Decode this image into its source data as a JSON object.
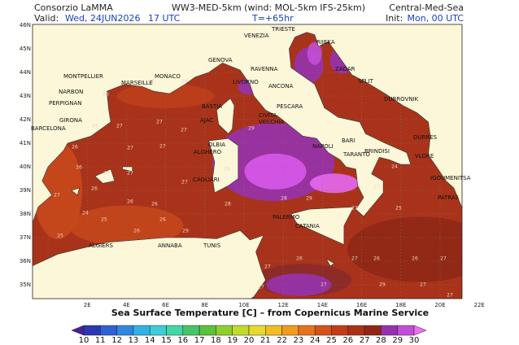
{
  "header": {
    "left_top": "Consorzio LaMMA",
    "center_top": "WW3-MED-5km (wind: MOL-5km IFS-25km)",
    "right_top": "Central-Med-Sea",
    "valid_label": "Valid:",
    "valid_date": "Wed, 24JUN2026",
    "valid_hour": "17 UTC",
    "lead": "T=+65hr",
    "init_label": "Init:",
    "init_time": "Mon, 00 UTC"
  },
  "map": {
    "lat_ticks": [
      "46N",
      "45N",
      "44N",
      "43N",
      "42N",
      "41N",
      "40N",
      "39N",
      "38N",
      "37N",
      "36N",
      "35N"
    ],
    "lon_ticks": [
      "2E",
      "4E",
      "6E",
      "8E",
      "10E",
      "12E",
      "14E",
      "16E",
      "18E",
      "20E",
      "22E"
    ],
    "cities": [
      "VENEZIA",
      "TRIESTE",
      "RIJEKA",
      "GENOVA",
      "MONACO",
      "MONTPELLIER",
      "MARSEILLE",
      "RAVENNA",
      "ZADAR",
      "SPLIT",
      "NARBON",
      "PERPIGNAN",
      "LIVORNO",
      "ANCONA",
      "DUBROVNIK",
      "BASTIA",
      "PESCARA",
      "CIVITA-",
      "VECCHIA",
      "GIRONA",
      "BARCELONA",
      "AJAC",
      "DURRES",
      "OLBIA",
      "ALGHERO",
      "NAPOLI",
      "BARI",
      "TARANTO",
      "BRINDISI",
      "VLORE",
      "IGOUMENITSA",
      "CAGLIARI",
      "PATRAS",
      "PALERMO",
      "CATANIA",
      "ALGIERS",
      "ANNABA",
      "TUNIS"
    ],
    "sst_labels": [
      "26",
      "26",
      "26",
      "26",
      "27",
      "27",
      "27",
      "26",
      "27",
      "27",
      "26",
      "26",
      "27",
      "27",
      "26",
      "26",
      "26",
      "27",
      "28",
      "29",
      "28",
      "29",
      "28",
      "24",
      "25",
      "25",
      "24",
      "25",
      "27",
      "27",
      "27",
      "26",
      "26",
      "27",
      "27",
      "26",
      "27",
      "27",
      "29",
      "27",
      "27",
      "29",
      "26",
      "26"
    ]
  },
  "colorbar": {
    "title": "Sea Surface Temperature [C] – from Copernicus Marine Service",
    "levels": [
      10,
      11,
      12,
      13,
      14,
      15,
      16,
      17,
      18,
      19,
      20,
      21,
      22,
      23,
      24,
      25,
      26,
      27,
      28,
      29,
      30
    ],
    "colors": [
      "#4a1e9e",
      "#2a36b2",
      "#2f60d4",
      "#2f88de",
      "#30b2e4",
      "#3ccdd8",
      "#43d6a6",
      "#47c46a",
      "#5cc23a",
      "#8ecf2f",
      "#c2da2a",
      "#e8d92a",
      "#f1be22",
      "#f19a1c",
      "#e6721a",
      "#d75218",
      "#c43c16",
      "#ab3014",
      "#922614",
      "#9632ae",
      "#c24ed6",
      "#f06ef0"
    ]
  }
}
